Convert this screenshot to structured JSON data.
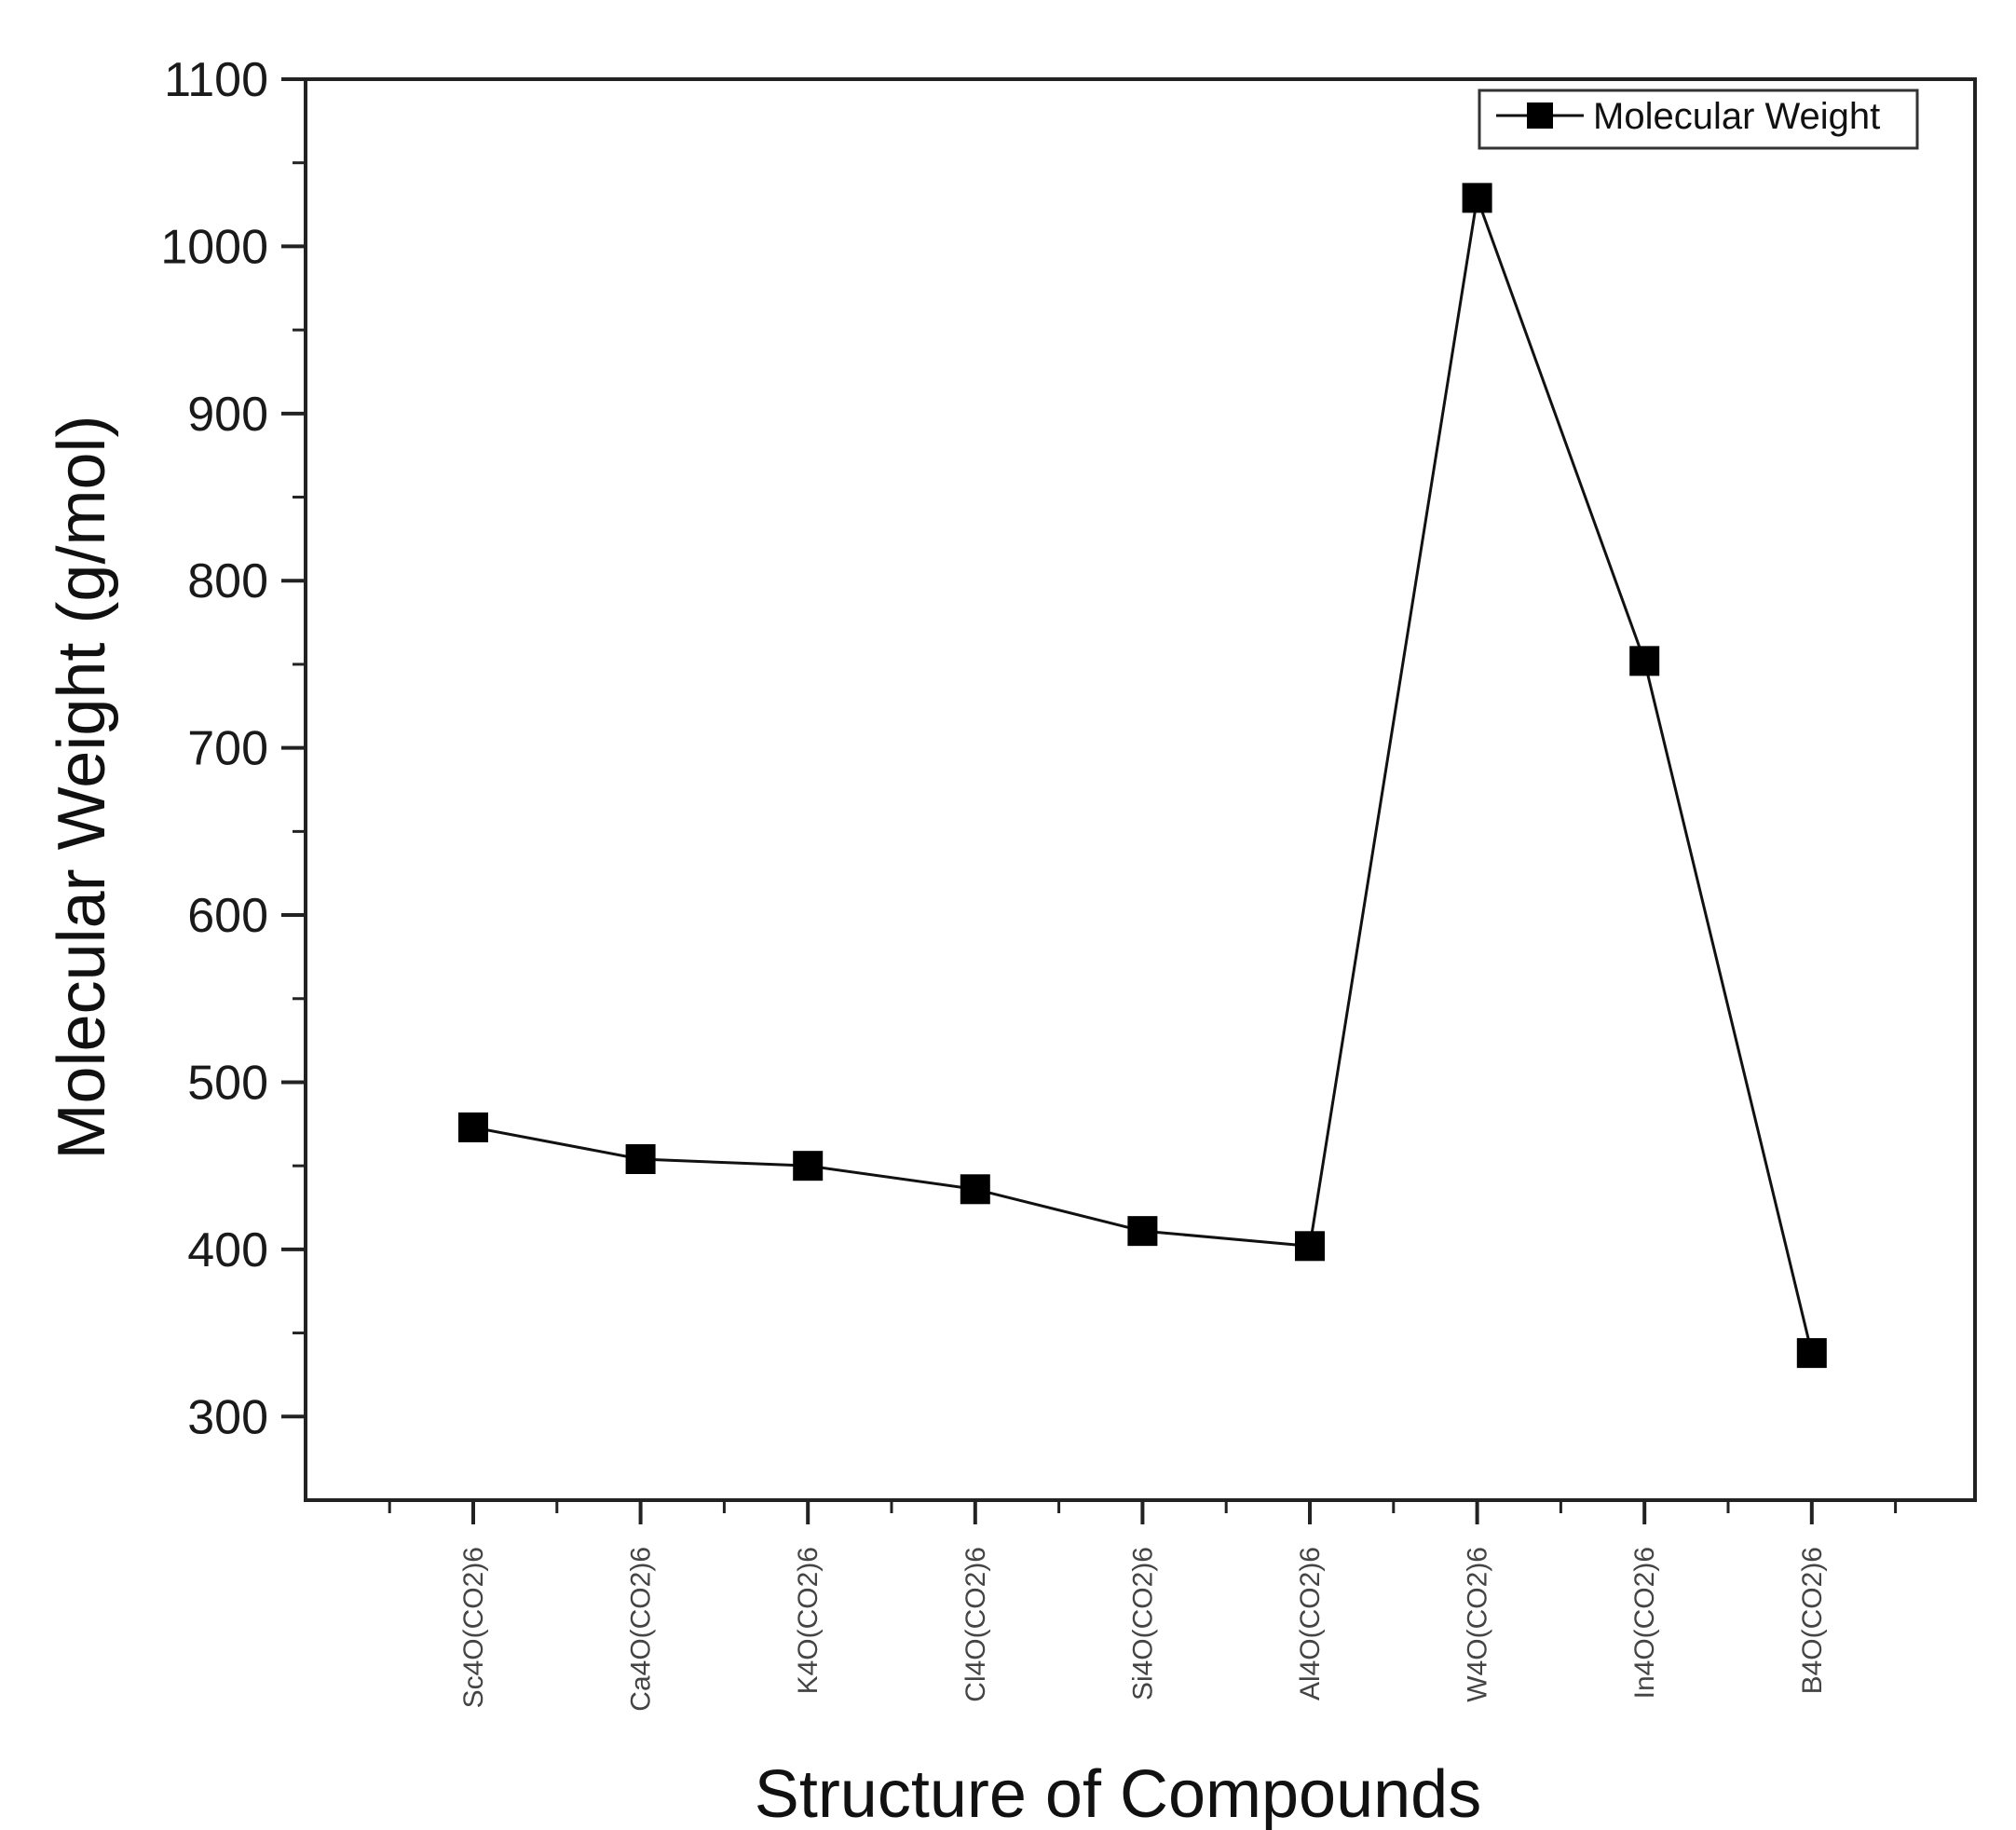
{
  "chart_data": {
    "type": "line",
    "title": "",
    "xlabel": "Structure of Compounds",
    "ylabel": "Molecular Weight (g/mol)",
    "ylim": [
      250,
      1100
    ],
    "yticks": [
      300,
      400,
      500,
      600,
      700,
      800,
      900,
      1000,
      1100
    ],
    "categories": [
      "Sc4O(CO2)6",
      "Ca4O(CO2)6",
      "K4O(CO2)6",
      "Cl4O(CO2)6",
      "Si4O(CO2)6",
      "Al4O(CO2)6",
      "W4O(CO2)6",
      "In4O(CO2)6",
      "B4O(CO2)6"
    ],
    "series": [
      {
        "name": "Molecular Weight",
        "values": [
          473,
          454,
          450,
          436,
          411,
          402,
          1029,
          752,
          338
        ]
      }
    ],
    "legend_position": "top-right",
    "grid": false,
    "colors": {
      "line": "#111111",
      "marker": "#000000",
      "axis": "#222222"
    }
  }
}
